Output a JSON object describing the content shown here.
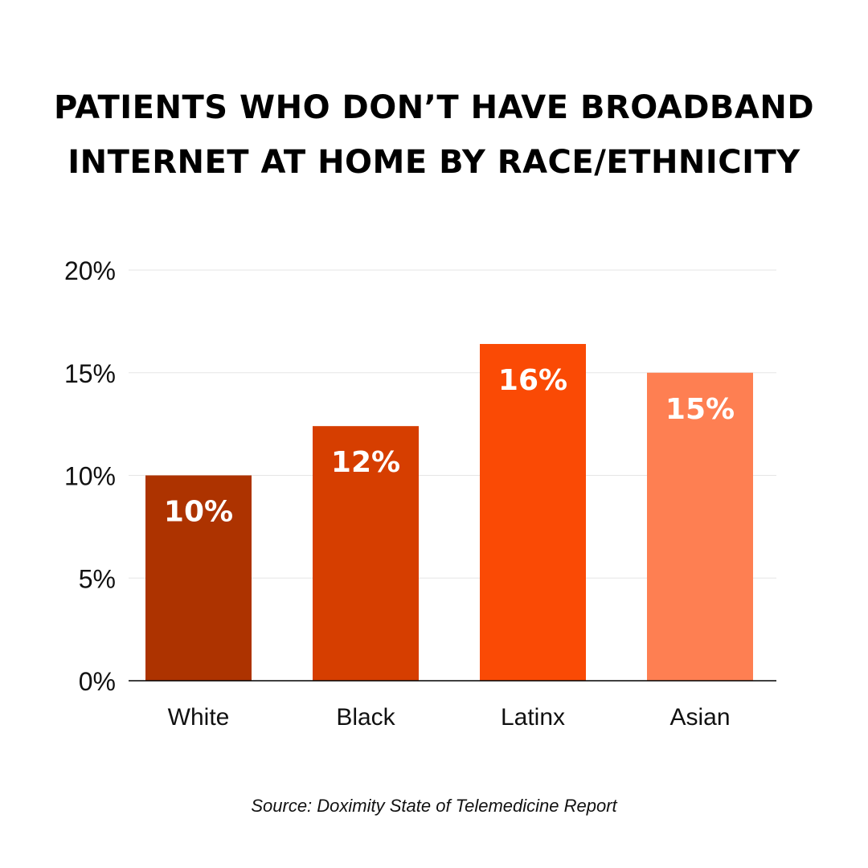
{
  "title_lines": [
    "PATIENTS WHO DON’T HAVE BROADBAND",
    "INTERNET AT HOME BY RACE/ETHNICITY"
  ],
  "source": "Source: Doximity State of Telemedicine Report",
  "chart_data": {
    "type": "bar",
    "title": "PATIENTS WHO DON’T HAVE BROADBAND INTERNET AT HOME BY RACE/ETHNICITY",
    "categories": [
      "White",
      "Black",
      "Latinx",
      "Asian"
    ],
    "values": [
      10,
      12.4,
      16.4,
      15
    ],
    "data_labels": [
      "10%",
      "12%",
      "16%",
      "15%"
    ],
    "colors": [
      "#AD3300",
      "#D63E00",
      "#FA4A05",
      "#FE7F52"
    ],
    "ylim": [
      0,
      20
    ],
    "yticks": [
      0,
      5,
      10,
      15,
      20
    ],
    "ytick_labels": [
      "0%",
      "5%",
      "10%",
      "15%",
      "20%"
    ],
    "grid": true,
    "xlabel": "",
    "ylabel": ""
  }
}
